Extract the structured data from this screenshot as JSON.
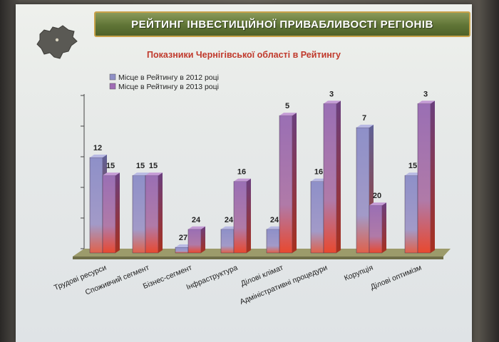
{
  "slide": {
    "title": "РЕЙТИНГ ІНВЕСТИЦІЙНОЇ ПРИВАБЛИВОСТІ РЕГІОНІВ",
    "subtitle": "Показники Чернігівської області в Рейтингу"
  },
  "colors": {
    "series_2012": "#8f8fc6",
    "series_2013": "#a06db5",
    "bar_bottom": "#e8492f",
    "title_bar": "#5f7436",
    "subtitle": "#c0392b"
  },
  "chart_data": {
    "type": "bar",
    "title": "Показники Чернігівської області в Рейтингу",
    "xlabel": "",
    "ylabel": "",
    "legend_position": "top-left",
    "grid": false,
    "categories": [
      "Трудові ресурси",
      "Споживчий сегмент",
      "Бізнес-сегмент",
      "Інфраструктура",
      "Ділові клімат",
      "Адміністративні процедури",
      "Корупція",
      "Ділові оптимізм"
    ],
    "series": [
      {
        "name": "Місце в Рейтингу в 2012 році",
        "values": [
          12,
          15,
          27,
          24,
          24,
          16,
          7,
          15
        ]
      },
      {
        "name": "Місце в Рейтингу в 2013 році",
        "values": [
          15,
          15,
          24,
          16,
          5,
          3,
          20,
          3
        ]
      }
    ]
  }
}
